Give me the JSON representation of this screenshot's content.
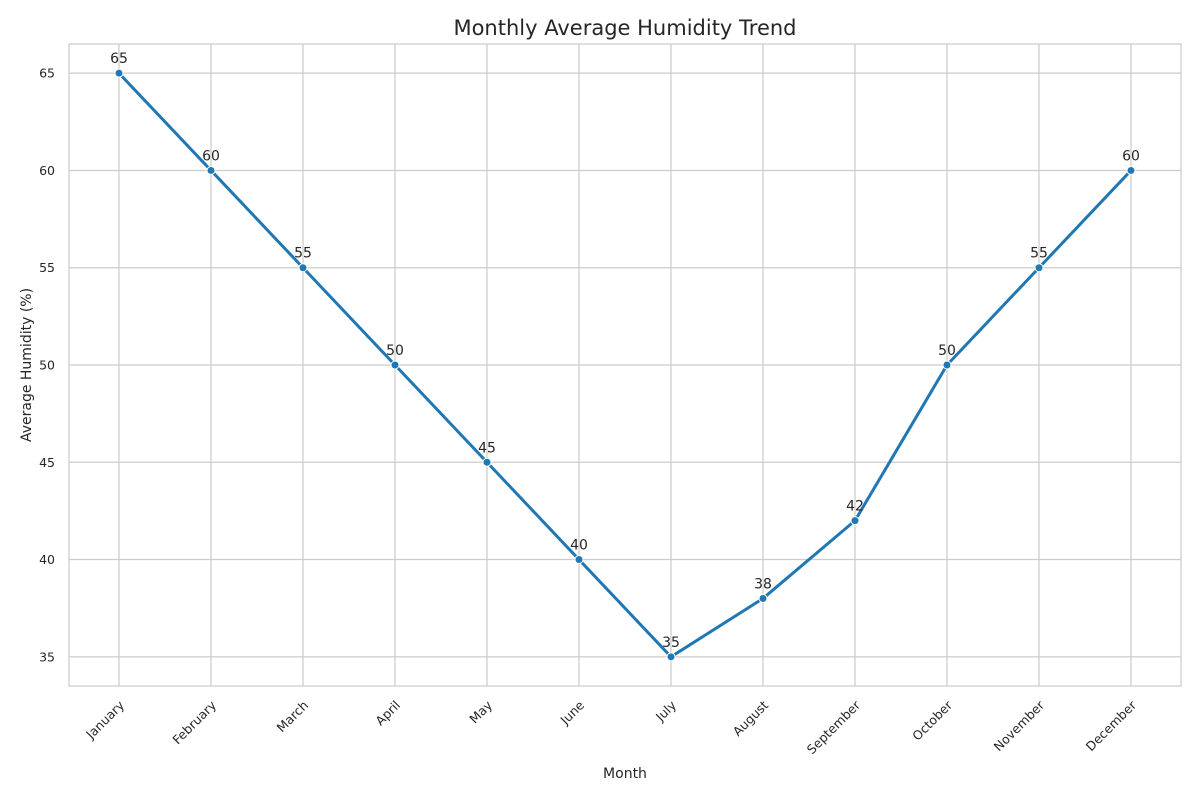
{
  "chart_data": {
    "type": "line",
    "title": "Monthly Average Humidity Trend",
    "xlabel": "Month",
    "ylabel": "Average Humidity (%)",
    "categories": [
      "January",
      "February",
      "March",
      "April",
      "May",
      "June",
      "July",
      "August",
      "September",
      "October",
      "November",
      "December"
    ],
    "series": [
      {
        "values": [
          65,
          60,
          55,
          50,
          45,
          40,
          35,
          38,
          42,
          50,
          55,
          60
        ],
        "color": "#1f77b4"
      }
    ],
    "data_labels": [
      "65",
      "60",
      "55",
      "50",
      "45",
      "40",
      "35",
      "38",
      "42",
      "50",
      "55",
      "60"
    ],
    "yticks": [
      35,
      40,
      45,
      50,
      55,
      60,
      65
    ],
    "ytick_labels": [
      "35",
      "40",
      "45",
      "50",
      "55",
      "60",
      "65"
    ],
    "ylim": [
      33.5,
      66.5
    ],
    "grid": true,
    "markers": true
  }
}
